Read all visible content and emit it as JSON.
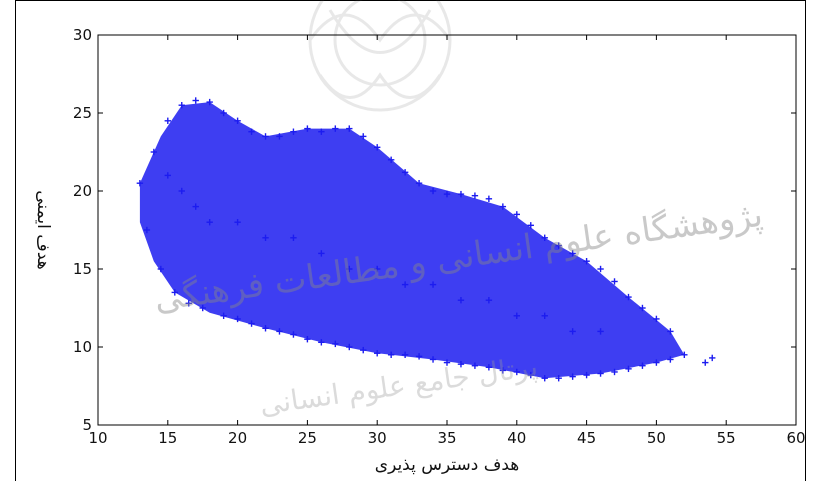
{
  "chart_data": {
    "type": "scatter",
    "title": "",
    "xlabel": "هدف دسترس پذیری",
    "ylabel": "هدف ایمنی",
    "xlim": [
      10,
      60
    ],
    "ylim": [
      5,
      30
    ],
    "x_ticks": [
      "10",
      "15",
      "20",
      "25",
      "30",
      "35",
      "40",
      "45",
      "50",
      "55",
      "60"
    ],
    "y_ticks": [
      "5",
      "10",
      "15",
      "20",
      "25",
      "30"
    ],
    "marker": "+",
    "color": "#1c1cf0",
    "grid": false,
    "legend": "none",
    "series": [
      {
        "values": [
          [
            13,
            20.5
          ],
          [
            13.5,
            17.5
          ],
          [
            14,
            22.5
          ],
          [
            14.5,
            15
          ],
          [
            15,
            24.5
          ],
          [
            15.5,
            13.5
          ],
          [
            16,
            25.5
          ],
          [
            16.5,
            12.8
          ],
          [
            17,
            25.8
          ],
          [
            17.5,
            12.5
          ],
          [
            18,
            25.7
          ],
          [
            19,
            25
          ],
          [
            19,
            12
          ],
          [
            20,
            24.5
          ],
          [
            20,
            11.8
          ],
          [
            21,
            23.8
          ],
          [
            21,
            11.5
          ],
          [
            22,
            23.5
          ],
          [
            22,
            11.2
          ],
          [
            23,
            23.5
          ],
          [
            23,
            11
          ],
          [
            24,
            23.8
          ],
          [
            24,
            10.8
          ],
          [
            25,
            24
          ],
          [
            25,
            10.5
          ],
          [
            26,
            23.8
          ],
          [
            26,
            10.3
          ],
          [
            27,
            24
          ],
          [
            27,
            10.2
          ],
          [
            28,
            24
          ],
          [
            28,
            10
          ],
          [
            29,
            23.5
          ],
          [
            29,
            9.8
          ],
          [
            30,
            22.8
          ],
          [
            30,
            9.6
          ],
          [
            31,
            22
          ],
          [
            31,
            9.5
          ],
          [
            32,
            21.2
          ],
          [
            32,
            9.5
          ],
          [
            33,
            20.5
          ],
          [
            33,
            9.4
          ],
          [
            34,
            20
          ],
          [
            34,
            9.2
          ],
          [
            35,
            19.8
          ],
          [
            35,
            9
          ],
          [
            36,
            19.8
          ],
          [
            36,
            8.9
          ],
          [
            37,
            19.7
          ],
          [
            37,
            8.8
          ],
          [
            38,
            19.5
          ],
          [
            38,
            8.7
          ],
          [
            39,
            19
          ],
          [
            39,
            8.5
          ],
          [
            40,
            18.5
          ],
          [
            40,
            8.4
          ],
          [
            41,
            17.8
          ],
          [
            41,
            8.2
          ],
          [
            42,
            17
          ],
          [
            42,
            8
          ],
          [
            43,
            16.5
          ],
          [
            43,
            8
          ],
          [
            44,
            16
          ],
          [
            44,
            8.1
          ],
          [
            45,
            15.5
          ],
          [
            45,
            8.2
          ],
          [
            46,
            15
          ],
          [
            46,
            8.3
          ],
          [
            47,
            14.2
          ],
          [
            47,
            8.4
          ],
          [
            48,
            13.2
          ],
          [
            48,
            8.6
          ],
          [
            49,
            12.5
          ],
          [
            49,
            8.8
          ],
          [
            50,
            11.8
          ],
          [
            50,
            9
          ],
          [
            51,
            11
          ],
          [
            51,
            9.2
          ],
          [
            52,
            9.5
          ],
          [
            54,
            9.3
          ],
          [
            53.5,
            9.0
          ],
          [
            15,
            21
          ],
          [
            16,
            20
          ],
          [
            17,
            19
          ],
          [
            18,
            18
          ],
          [
            20,
            18
          ],
          [
            22,
            17
          ],
          [
            24,
            17
          ],
          [
            26,
            16
          ],
          [
            28,
            15
          ],
          [
            30,
            15
          ],
          [
            32,
            14
          ],
          [
            34,
            14
          ],
          [
            36,
            13
          ],
          [
            38,
            13
          ],
          [
            40,
            12
          ],
          [
            42,
            12
          ],
          [
            44,
            11
          ],
          [
            46,
            11
          ]
        ]
      }
    ]
  },
  "watermark": {
    "line1": "پژوهشگاه علوم انسانی و مطالعات فرهنگی",
    "line2": "پرتال جامع علوم انسانی"
  }
}
